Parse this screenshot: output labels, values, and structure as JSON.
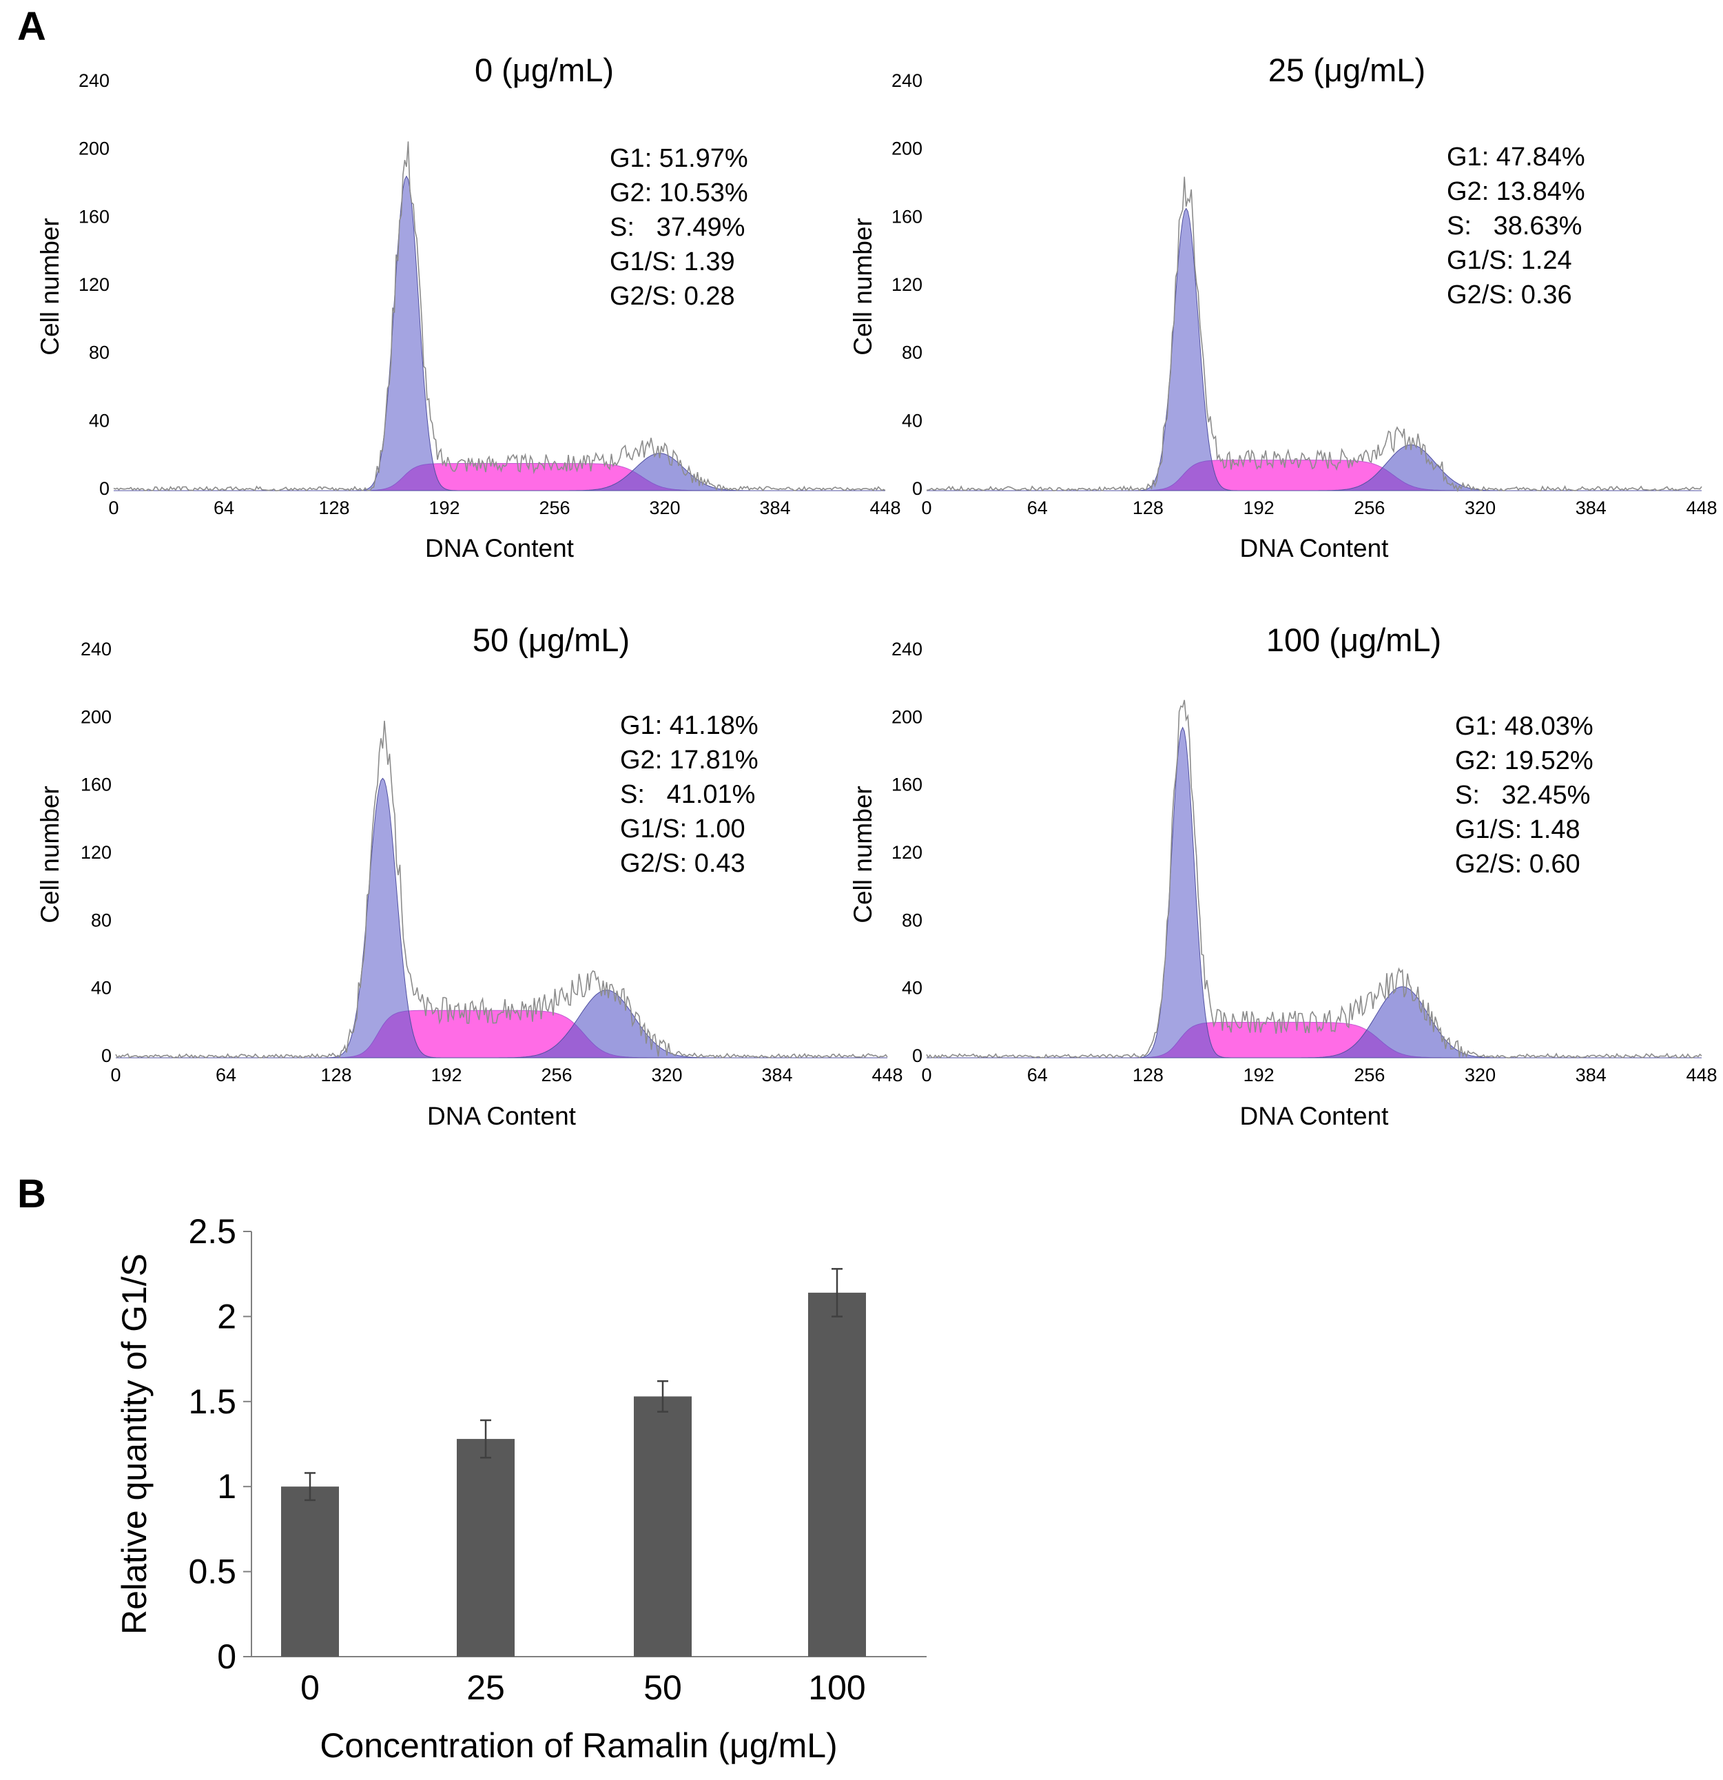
{
  "figure": {
    "panel_a_label": "A",
    "panel_b_label": "B"
  },
  "chart_data": [
    {
      "type": "area",
      "title": "0 (μg/mL)",
      "xlabel": "DNA Content",
      "ylabel": "Cell number",
      "xlim": [
        0,
        448
      ],
      "ylim": [
        0,
        240
      ],
      "xticks": [
        "0",
        "64",
        "128",
        "192",
        "256",
        "320",
        "384",
        "448"
      ],
      "yticks": [
        "0",
        "40",
        "80",
        "120",
        "160",
        "200",
        "240"
      ],
      "stats": [
        "G1: 51.97%",
        "G2: 10.53%",
        "S:   37.49%",
        "G1/S: 1.39",
        "G2/S: 0.28"
      ],
      "model": {
        "g1_peak": 170,
        "g1_height": 185,
        "g1_sd": 7,
        "g2_peak": 317,
        "g2_height": 22,
        "g2_sd": 14,
        "s_start": 168,
        "s_end": 307,
        "s_height": 16,
        "noise": 9,
        "seed": 3
      }
    },
    {
      "type": "area",
      "title": "25 (μg/mL)",
      "xlabel": "DNA Content",
      "ylabel": "Cell number",
      "xlim": [
        0,
        448
      ],
      "ylim": [
        0,
        240
      ],
      "xticks": [
        "0",
        "64",
        "128",
        "192",
        "256",
        "320",
        "384",
        "448"
      ],
      "yticks": [
        "0",
        "40",
        "80",
        "120",
        "160",
        "200",
        "240"
      ],
      "stats": [
        "G1: 47.84%",
        "G2: 13.84%",
        "S:   38.63%",
        "G1/S: 1.24",
        "G2/S: 0.36"
      ],
      "model": {
        "g1_peak": 150,
        "g1_height": 166,
        "g1_sd": 7,
        "g2_peak": 280,
        "g2_height": 27,
        "g2_sd": 14,
        "s_start": 148,
        "s_end": 270,
        "s_height": 18,
        "noise": 10,
        "seed": 7
      }
    },
    {
      "type": "area",
      "title": "50 (μg/mL)",
      "xlabel": "DNA Content",
      "ylabel": "Cell number",
      "xlim": [
        0,
        448
      ],
      "ylim": [
        0,
        240
      ],
      "xticks": [
        "0",
        "64",
        "128",
        "192",
        "256",
        "320",
        "384",
        "448"
      ],
      "yticks": [
        "0",
        "40",
        "80",
        "120",
        "160",
        "200",
        "240"
      ],
      "stats": [
        "G1: 41.18%",
        "G2: 17.81%",
        "S:   41.01%",
        "G1/S: 1.00",
        "G2/S: 0.43"
      ],
      "model": {
        "g1_peak": 155,
        "g1_height": 165,
        "g1_sd": 8,
        "g2_peak": 285,
        "g2_height": 40,
        "g2_sd": 16,
        "s_start": 152,
        "s_end": 272,
        "s_height": 28,
        "noise": 12,
        "seed": 11
      }
    },
    {
      "type": "area",
      "title": "100 (μg/mL)",
      "xlabel": "DNA Content",
      "ylabel": "Cell number",
      "xlim": [
        0,
        448
      ],
      "ylim": [
        0,
        240
      ],
      "xticks": [
        "0",
        "64",
        "128",
        "192",
        "256",
        "320",
        "384",
        "448"
      ],
      "yticks": [
        "0",
        "40",
        "80",
        "120",
        "160",
        "200",
        "240"
      ],
      "stats": [
        "G1: 48.03%",
        "G2: 19.52%",
        "S:   32.45%",
        "G1/S: 1.48",
        "G2/S: 0.60"
      ],
      "model": {
        "g1_peak": 148,
        "g1_height": 195,
        "g1_sd": 6.5,
        "g2_peak": 275,
        "g2_height": 42,
        "g2_sd": 15,
        "s_start": 146,
        "s_end": 262,
        "s_height": 21,
        "noise": 11,
        "seed": 5
      }
    },
    {
      "type": "bar",
      "categories": [
        "0",
        "25",
        "50",
        "100"
      ],
      "values": [
        1.0,
        1.28,
        1.53,
        2.14
      ],
      "errors": [
        0.08,
        0.11,
        0.09,
        0.14
      ],
      "xlabel": "Concentration of Ramalin (μg/mL)",
      "ylabel": "Relative quantity of G1/S",
      "ylim": [
        0,
        2.5
      ],
      "yticks": [
        "0",
        "0.5",
        "1",
        "1.5",
        "2",
        "2.5"
      ],
      "bar_color": "#595959"
    }
  ]
}
